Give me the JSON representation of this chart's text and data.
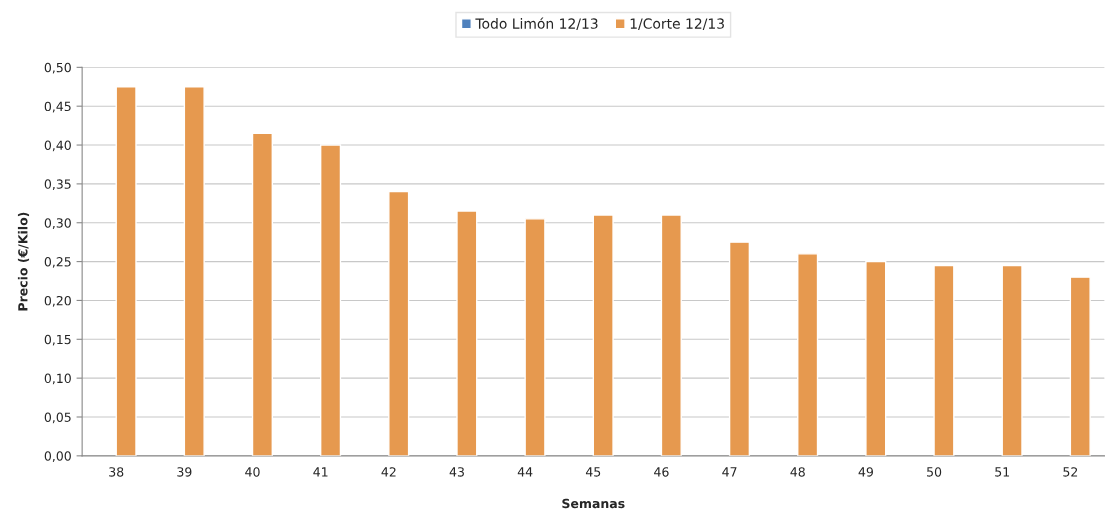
{
  "chart_data": {
    "type": "bar",
    "xlabel": "Semanas",
    "ylabel": "Precio (€/Kilo)",
    "categories": [
      "38",
      "39",
      "40",
      "41",
      "42",
      "43",
      "44",
      "45",
      "46",
      "47",
      "48",
      "49",
      "50",
      "51",
      "52"
    ],
    "series": [
      {
        "name": "Todo Limón 12/13",
        "color": "#4f81bd",
        "values": [
          null,
          null,
          null,
          null,
          null,
          null,
          null,
          null,
          null,
          null,
          null,
          null,
          null,
          null,
          null
        ]
      },
      {
        "name": "1/Corte 12/13",
        "color": "#e6994f",
        "values": [
          0.475,
          0.475,
          0.415,
          0.4,
          0.34,
          0.315,
          0.305,
          0.31,
          0.31,
          0.275,
          0.26,
          0.25,
          0.245,
          0.245,
          0.23
        ]
      }
    ],
    "ylim": [
      0,
      0.5
    ],
    "yticks": [
      {
        "value": 0,
        "label": "0,00"
      },
      {
        "value": 0.05,
        "label": "0,05"
      },
      {
        "value": 0.1,
        "label": "0,10"
      },
      {
        "value": 0.15,
        "label": "0,15"
      },
      {
        "value": 0.2,
        "label": "0,20"
      },
      {
        "value": 0.25,
        "label": "0,25"
      },
      {
        "value": 0.3,
        "label": "0,30"
      },
      {
        "value": 0.35,
        "label": "0,35"
      },
      {
        "value": 0.4,
        "label": "0,40"
      },
      {
        "value": 0.45,
        "label": "0,45"
      },
      {
        "value": 0.5,
        "label": "0,50"
      }
    ],
    "grid": "y",
    "legend": "top"
  }
}
